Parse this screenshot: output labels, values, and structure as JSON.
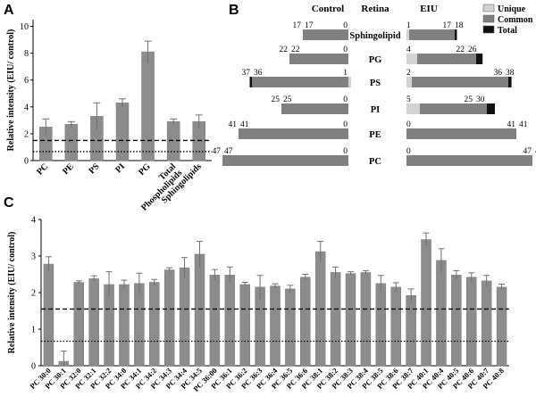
{
  "panels": {
    "A": "A",
    "B": "B",
    "C": "C"
  },
  "chart_data": [
    {
      "panel": "A",
      "type": "bar",
      "categories": [
        "PC",
        "PE",
        "PS",
        "PI",
        "PG",
        "Total Phospholipids",
        "Sphingolipids"
      ],
      "category_lines": [
        [
          "PC"
        ],
        [
          "PE"
        ],
        [
          "PS"
        ],
        [
          "PI"
        ],
        [
          "PG"
        ],
        [
          "Total",
          "Phospholipids"
        ],
        [
          "Sphingolipids"
        ]
      ],
      "values": [
        2.5,
        2.7,
        3.3,
        4.3,
        8.1,
        2.9,
        2.9
      ],
      "errors": [
        0.6,
        0.2,
        1.0,
        0.3,
        0.8,
        0.2,
        0.5
      ],
      "ylabel": "Relative intensity (EIU/ control)",
      "ylim": [
        0,
        10.5
      ],
      "yticks": [
        0,
        2,
        4,
        6,
        8,
        10
      ],
      "reference_lines": [
        {
          "style": "dashed",
          "y": 1.5
        },
        {
          "style": "dotted",
          "y": 0.67
        }
      ],
      "bar_color": "#8c8c8c"
    },
    {
      "panel": "B",
      "type": "bar",
      "orientation": "horizontal",
      "headers": {
        "control": "Control",
        "middle": "Retina",
        "eiu": "EIU"
      },
      "legend": [
        {
          "label": "Unique",
          "color": "#d3d3d3"
        },
        {
          "label": "Common",
          "color": "#808080"
        },
        {
          "label": "Total",
          "color": "#111111"
        }
      ],
      "rows": [
        {
          "label": "Sphingolipid",
          "control": {
            "total": 17,
            "common": 17,
            "unique": 0
          },
          "eiu": {
            "unique": 1,
            "common": 17,
            "total": 18
          }
        },
        {
          "label": "PG",
          "control": {
            "total": 22,
            "common": 22,
            "unique": 0
          },
          "eiu": {
            "unique": 4,
            "common": 22,
            "total": 26
          }
        },
        {
          "label": "PS",
          "control": {
            "total": 37,
            "common": 36,
            "unique": 1
          },
          "eiu": {
            "unique": 2,
            "common": 36,
            "total": 38
          }
        },
        {
          "label": "PI",
          "control": {
            "total": 25,
            "common": 25,
            "unique": 0
          },
          "eiu": {
            "unique": 5,
            "common": 25,
            "total": 30
          }
        },
        {
          "label": "PE",
          "control": {
            "total": 41,
            "common": 41,
            "unique": 0
          },
          "eiu": {
            "unique": 0,
            "common": 41,
            "total": 41
          }
        },
        {
          "label": "PC",
          "control": {
            "total": 47,
            "common": 47,
            "unique": 0
          },
          "eiu": {
            "unique": 0,
            "common": 47,
            "total": 47
          }
        }
      ]
    },
    {
      "panel": "C",
      "type": "bar",
      "categories": [
        "PC 30:0",
        "PC 30:1",
        "PC 32:0",
        "PC 32:1",
        "PC 32:2",
        "PC 34:0",
        "PC 34:1",
        "PC 34:2",
        "PC 34:3",
        "PC 34:4",
        "PC 34:5",
        "PC 36:00",
        "PC 36:1",
        "PC 36:2",
        "PC 36:3",
        "PC 36:4",
        "PC 36:5",
        "PC 36:6",
        "PC 38:1",
        "PC 38:2",
        "PC 38:3",
        "PC 38:4",
        "PC 38:5",
        "PC 38:6",
        "PC 38:7",
        "PC 40:1",
        "PC 40:4",
        "PC 40:5",
        "PC 40:6",
        "PC 40:7",
        "PC 40:8"
      ],
      "values": [
        2.78,
        0.12,
        2.28,
        2.38,
        2.22,
        2.22,
        2.25,
        2.28,
        2.62,
        2.68,
        3.05,
        2.48,
        2.48,
        2.22,
        2.15,
        2.18,
        2.1,
        2.42,
        3.12,
        2.55,
        2.52,
        2.55,
        2.25,
        2.15,
        1.92,
        3.45,
        2.88,
        2.48,
        2.42,
        2.32,
        2.15
      ],
      "errors": [
        0.2,
        0.28,
        0.04,
        0.08,
        0.35,
        0.12,
        0.28,
        0.08,
        0.06,
        0.28,
        0.35,
        0.15,
        0.22,
        0.06,
        0.32,
        0.06,
        0.1,
        0.08,
        0.28,
        0.15,
        0.05,
        0.05,
        0.22,
        0.12,
        0.18,
        0.18,
        0.32,
        0.12,
        0.12,
        0.15,
        0.08
      ],
      "ylabel": "Relative intensity (EIU/ control)",
      "ylim": [
        0,
        4
      ],
      "yticks": [
        0,
        1,
        2,
        3,
        4
      ],
      "reference_lines": [
        {
          "style": "dashed",
          "y": 1.55
        },
        {
          "style": "dotted",
          "y": 0.67
        }
      ],
      "bar_color": "#8c8c8c"
    }
  ]
}
